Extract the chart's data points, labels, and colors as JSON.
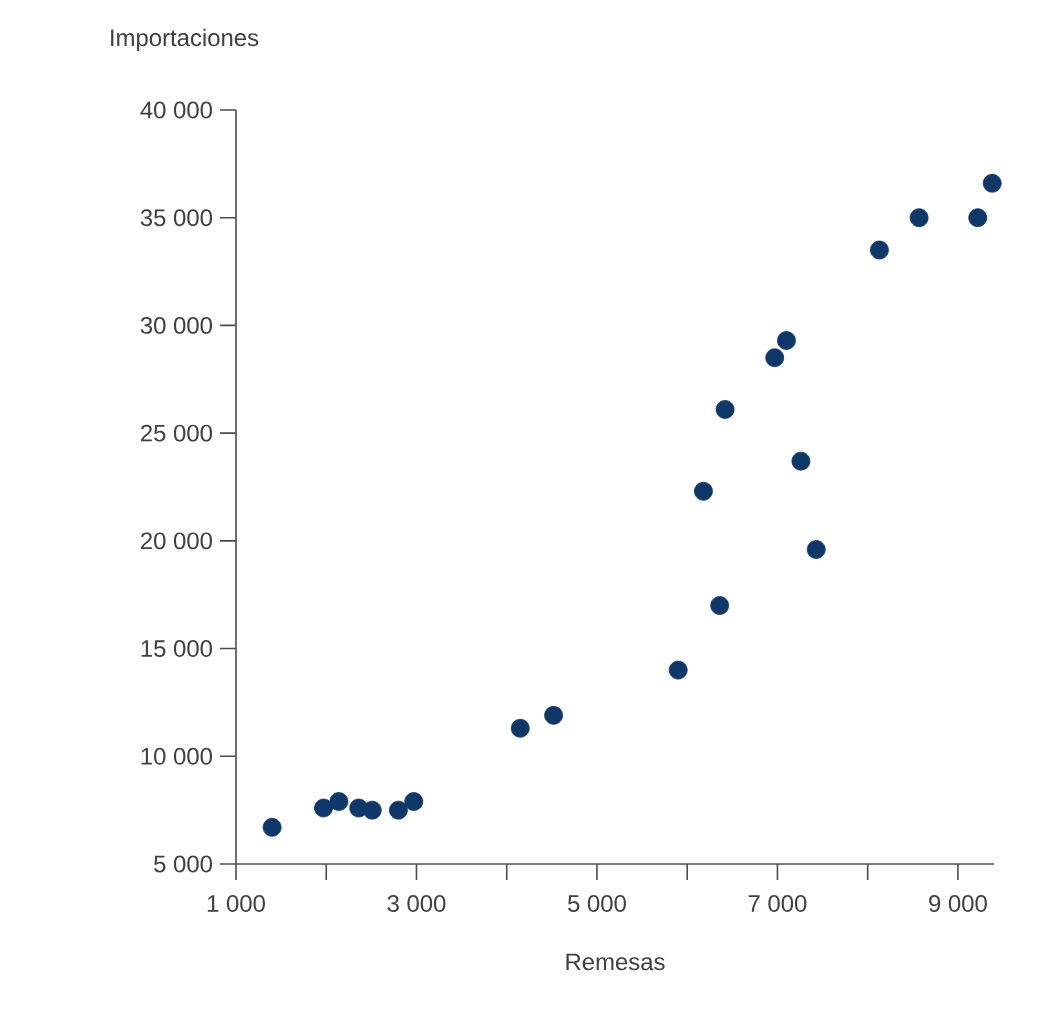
{
  "chart_data": {
    "type": "scatter",
    "xlabel": "Remesas",
    "ylabel": "Importaciones",
    "grid": false,
    "xlim": [
      1000,
      9400
    ],
    "ylim": [
      5000,
      40000
    ],
    "xticks": [
      {
        "value": 1000,
        "label": "1 000"
      },
      {
        "value": 2000,
        "label": null
      },
      {
        "value": 3000,
        "label": "3 000"
      },
      {
        "value": 4000,
        "label": null
      },
      {
        "value": 5000,
        "label": "5 000"
      },
      {
        "value": 6000,
        "label": null
      },
      {
        "value": 7000,
        "label": "7 000"
      },
      {
        "value": 8000,
        "label": null
      },
      {
        "value": 9000,
        "label": "9 000"
      }
    ],
    "yticks": [
      {
        "value": 5000,
        "label": "5 000"
      },
      {
        "value": 10000,
        "label": "10 000"
      },
      {
        "value": 15000,
        "label": "15 000"
      },
      {
        "value": 20000,
        "label": "20 000"
      },
      {
        "value": 25000,
        "label": "25 000"
      },
      {
        "value": 30000,
        "label": "30 000"
      },
      {
        "value": 35000,
        "label": "35 000"
      },
      {
        "value": 40000,
        "label": "40 000"
      }
    ],
    "series": [
      {
        "color": "#0f3768",
        "x": [
          1400,
          1970,
          2140,
          2360,
          2510,
          2800,
          2970,
          4150,
          4520,
          5900,
          6360,
          7430,
          6180,
          7260,
          6420,
          6970,
          7100,
          8130,
          8570,
          9220,
          9380
        ],
        "values": [
          6700,
          7600,
          7900,
          7600,
          7500,
          7500,
          7900,
          11300,
          11900,
          14000,
          17000,
          19600,
          22300,
          23700,
          26100,
          28500,
          29300,
          33500,
          35000,
          35000,
          36600
        ]
      }
    ]
  }
}
